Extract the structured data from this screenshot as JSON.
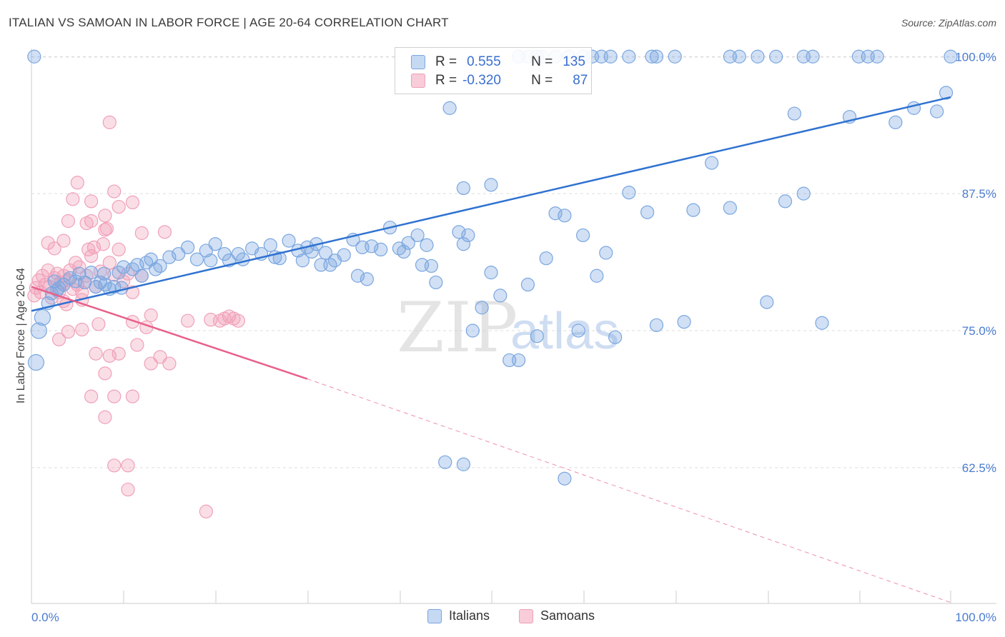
{
  "title": "ITALIAN VS SAMOAN IN LABOR FORCE | AGE 20-64 CORRELATION CHART",
  "source": "Source: ZipAtlas.com",
  "watermark": {
    "zip": "ZIP",
    "atlas": "atlas"
  },
  "colors": {
    "italians": "#7aa6e0",
    "italians_line": "#2f72d0",
    "samoans": "#f0a0b8",
    "samoans_line": "#e8608a",
    "tick": "#4a7cd0",
    "grid": "#dddddd"
  },
  "stats": {
    "italians": {
      "r_label": "R =",
      "r": "0.555",
      "n_label": "N =",
      "n": "135"
    },
    "samoans": {
      "r_label": "R =",
      "r": "-0.320",
      "n_label": "N =",
      "n": "87"
    }
  },
  "legend": {
    "italians": "Italians",
    "samoans": "Samoans"
  },
  "chart_data": {
    "type": "scatter",
    "title": "ITALIAN VS SAMOAN IN LABOR FORCE | AGE 20-64 CORRELATION CHART",
    "xlabel": "",
    "ylabel": "In Labor Force | Age 20-64",
    "xlim": [
      0,
      100
    ],
    "ylim": [
      50,
      101
    ],
    "x_tick_labels": [
      "0.0%",
      "100.0%"
    ],
    "y_ticks": [
      62.5,
      75.0,
      87.5,
      100.0
    ],
    "y_tick_labels": [
      "62.5%",
      "75.0%",
      "87.5%",
      "100.0%"
    ],
    "grid": true,
    "legend_position": "bottom",
    "series": [
      {
        "name": "Italians",
        "trendline": {
          "x": [
            0,
            100
          ],
          "y": [
            76.8,
            96.3
          ],
          "dashed_extension": false
        },
        "points": [
          [
            0.5,
            72.1
          ],
          [
            0.8,
            75.0
          ],
          [
            1.2,
            76.2
          ],
          [
            1.8,
            77.5
          ],
          [
            2.2,
            78.4
          ],
          [
            2.8,
            78.7
          ],
          [
            3.0,
            78.9
          ],
          [
            3.5,
            79.2
          ],
          [
            4.2,
            79.8
          ],
          [
            4.8,
            79.5
          ],
          [
            5.2,
            80.2
          ],
          [
            5.8,
            79.4
          ],
          [
            6.5,
            80.3
          ],
          [
            7.0,
            79.0
          ],
          [
            7.5,
            79.4
          ],
          [
            8.0,
            79.2
          ],
          [
            8.5,
            78.8
          ],
          [
            9.0,
            79.0
          ],
          [
            9.5,
            80.3
          ],
          [
            10.0,
            80.8
          ],
          [
            11.0,
            80.6
          ],
          [
            12.0,
            80.0
          ],
          [
            12.5,
            81.2
          ],
          [
            13.5,
            80.6
          ],
          [
            14.0,
            80.9
          ],
          [
            15.0,
            81.7
          ],
          [
            16.0,
            82.0
          ],
          [
            17.0,
            82.6
          ],
          [
            18.0,
            81.5
          ],
          [
            19.0,
            82.3
          ],
          [
            20.0,
            82.9
          ],
          [
            21.5,
            81.4
          ],
          [
            22.5,
            82.0
          ],
          [
            23.0,
            81.5
          ],
          [
            24.0,
            82.5
          ],
          [
            25.0,
            82.0
          ],
          [
            26.0,
            82.8
          ],
          [
            27.0,
            81.6
          ],
          [
            28.0,
            83.2
          ],
          [
            29.0,
            82.3
          ],
          [
            30.0,
            82.6
          ],
          [
            31.0,
            82.9
          ],
          [
            32.0,
            82.1
          ],
          [
            33.0,
            81.4
          ],
          [
            34.0,
            81.9
          ],
          [
            35.0,
            83.3
          ],
          [
            36.0,
            82.6
          ],
          [
            37.0,
            82.7
          ],
          [
            38.0,
            82.4
          ],
          [
            39.0,
            84.4
          ],
          [
            40.0,
            82.5
          ],
          [
            41.0,
            83.0
          ],
          [
            42.0,
            83.7
          ],
          [
            43.0,
            82.8
          ],
          [
            29.5,
            81.4
          ],
          [
            30.5,
            82.2
          ],
          [
            26.5,
            81.7
          ],
          [
            19.5,
            81.4
          ],
          [
            21.0,
            82.0
          ],
          [
            13.0,
            81.5
          ],
          [
            11.5,
            81.0
          ],
          [
            36.5,
            79.7
          ],
          [
            35.5,
            80.0
          ],
          [
            31.5,
            81.0
          ],
          [
            32.5,
            81.0
          ],
          [
            40.5,
            82.2
          ],
          [
            42.5,
            81.0
          ],
          [
            46.5,
            84.0
          ],
          [
            47.0,
            82.9
          ],
          [
            43.5,
            80.9
          ],
          [
            44.0,
            79.4
          ],
          [
            47.5,
            83.7
          ],
          [
            48.0,
            75.0
          ],
          [
            49.0,
            77.1
          ],
          [
            50.0,
            80.3
          ],
          [
            51.0,
            78.2
          ],
          [
            52.0,
            72.3
          ],
          [
            53.0,
            72.3
          ],
          [
            54.0,
            79.2
          ],
          [
            55.0,
            74.5
          ],
          [
            56.0,
            81.6
          ],
          [
            57.0,
            85.7
          ],
          [
            58.0,
            85.5
          ],
          [
            59.5,
            75.0
          ],
          [
            60.0,
            83.7
          ],
          [
            61.5,
            80.0
          ],
          [
            62.5,
            82.1
          ],
          [
            63.5,
            74.4
          ],
          [
            65.0,
            87.6
          ],
          [
            67.0,
            85.8
          ],
          [
            68.0,
            75.5
          ],
          [
            71.0,
            75.8
          ],
          [
            72.0,
            86.0
          ],
          [
            74.0,
            90.3
          ],
          [
            76.0,
            86.2
          ],
          [
            80.0,
            77.6
          ],
          [
            82.0,
            86.8
          ],
          [
            83.0,
            94.8
          ],
          [
            84.0,
            87.5
          ],
          [
            86.0,
            75.7
          ],
          [
            89.0,
            94.5
          ],
          [
            94.0,
            94.0
          ],
          [
            96.0,
            95.3
          ],
          [
            98.5,
            95.0
          ],
          [
            99.5,
            96.7
          ],
          [
            100.0,
            100.0
          ],
          [
            50.0,
            88.3
          ],
          [
            47.0,
            88.0
          ],
          [
            45.0,
            63.0
          ],
          [
            47.0,
            62.8
          ],
          [
            58.0,
            61.5
          ],
          [
            45.5,
            95.3
          ],
          [
            53.0,
            100
          ],
          [
            55.0,
            100
          ],
          [
            57.0,
            100
          ],
          [
            61.0,
            100
          ],
          [
            63.0,
            100
          ],
          [
            65.0,
            100
          ],
          [
            67.5,
            100
          ],
          [
            68.0,
            100
          ],
          [
            70.0,
            100
          ],
          [
            76.0,
            100
          ],
          [
            79.0,
            100
          ],
          [
            81.0,
            100
          ],
          [
            84.0,
            100
          ],
          [
            90.0,
            100
          ],
          [
            91.0,
            100
          ],
          [
            92.0,
            100
          ],
          [
            0.3,
            100
          ],
          [
            85.0,
            100
          ],
          [
            77.0,
            100
          ],
          [
            60.0,
            100
          ],
          [
            58.5,
            100
          ],
          [
            62.0,
            100
          ],
          [
            55.5,
            100
          ],
          [
            54.0,
            100
          ],
          [
            7.9,
            80.2
          ],
          [
            9.8,
            78.9
          ],
          [
            2.5,
            79.5
          ]
        ]
      },
      {
        "name": "Samoans",
        "trendline": {
          "x": [
            0,
            30
          ],
          "y": [
            79.0,
            70.6
          ],
          "dashed_to": [
            100,
            50.2
          ]
        },
        "points": [
          [
            0.3,
            78.2
          ],
          [
            0.5,
            78.9
          ],
          [
            0.8,
            79.6
          ],
          [
            1.0,
            78.5
          ],
          [
            1.2,
            80.0
          ],
          [
            1.5,
            79.2
          ],
          [
            1.8,
            80.5
          ],
          [
            2.0,
            79.0
          ],
          [
            2.2,
            78.0
          ],
          [
            2.5,
            79.8
          ],
          [
            2.8,
            80.2
          ],
          [
            3.0,
            78.5
          ],
          [
            3.2,
            79.4
          ],
          [
            3.5,
            80.0
          ],
          [
            3.8,
            77.4
          ],
          [
            4.0,
            79.6
          ],
          [
            4.2,
            80.5
          ],
          [
            4.5,
            78.8
          ],
          [
            4.8,
            81.2
          ],
          [
            5.0,
            79.2
          ],
          [
            5.2,
            80.8
          ],
          [
            5.5,
            77.8
          ],
          [
            5.8,
            79.4
          ],
          [
            6.0,
            80.0
          ],
          [
            6.2,
            82.4
          ],
          [
            6.5,
            81.8
          ],
          [
            6.8,
            82.6
          ],
          [
            7.0,
            79.0
          ],
          [
            7.5,
            80.4
          ],
          [
            7.8,
            82.9
          ],
          [
            8.0,
            84.2
          ],
          [
            8.2,
            84.3
          ],
          [
            8.5,
            81.2
          ],
          [
            9.0,
            80.1
          ],
          [
            9.5,
            82.4
          ],
          [
            10.0,
            79.5
          ],
          [
            10.5,
            80.2
          ],
          [
            11.0,
            78.5
          ],
          [
            12.0,
            80.0
          ],
          [
            6.5,
            85.0
          ],
          [
            8.0,
            85.5
          ],
          [
            9.5,
            86.3
          ],
          [
            11.0,
            86.7
          ],
          [
            12.0,
            83.9
          ],
          [
            14.5,
            84.0
          ],
          [
            4.0,
            85.0
          ],
          [
            3.5,
            83.2
          ],
          [
            2.5,
            82.5
          ],
          [
            1.8,
            83.0
          ],
          [
            4.5,
            87.0
          ],
          [
            5.0,
            88.5
          ],
          [
            6.0,
            84.8
          ],
          [
            6.5,
            86.8
          ],
          [
            8.5,
            94.0
          ],
          [
            9.0,
            87.7
          ],
          [
            5.5,
            78.5
          ],
          [
            7.3,
            75.6
          ],
          [
            8.5,
            72.7
          ],
          [
            9.5,
            72.9
          ],
          [
            11.0,
            75.8
          ],
          [
            11.5,
            73.7
          ],
          [
            12.5,
            75.3
          ],
          [
            13.0,
            76.4
          ],
          [
            14.0,
            72.6
          ],
          [
            15.0,
            72.0
          ],
          [
            17.0,
            75.9
          ],
          [
            19.5,
            76.0
          ],
          [
            20.5,
            75.9
          ],
          [
            21.0,
            76.1
          ],
          [
            22.0,
            76.1
          ],
          [
            22.5,
            75.9
          ],
          [
            21.5,
            76.3
          ],
          [
            3.0,
            74.2
          ],
          [
            4.0,
            74.9
          ],
          [
            5.5,
            75.1
          ],
          [
            7.0,
            72.9
          ],
          [
            8.0,
            71.1
          ],
          [
            6.5,
            69.0
          ],
          [
            8.0,
            67.1
          ],
          [
            9.0,
            69.0
          ],
          [
            11.0,
            69.0
          ],
          [
            9.0,
            62.7
          ],
          [
            10.5,
            62.7
          ],
          [
            10.5,
            60.5
          ],
          [
            19.0,
            58.5
          ],
          [
            13.0,
            72.0
          ],
          [
            3.5,
            77.7
          ]
        ]
      }
    ]
  }
}
